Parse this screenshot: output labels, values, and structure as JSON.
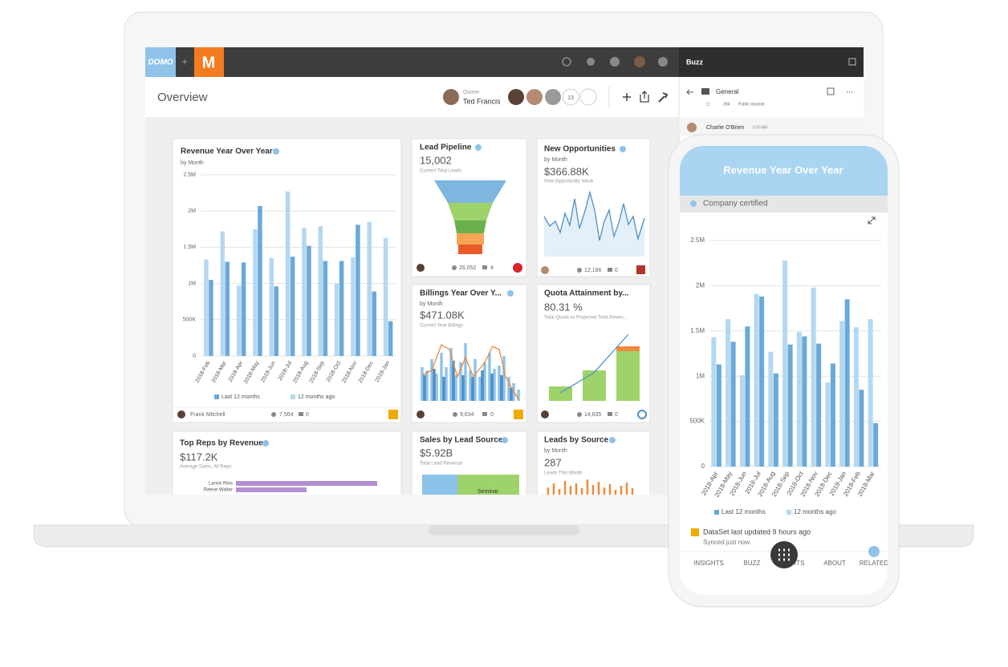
{
  "top_bar": {
    "logo": "DOMO",
    "plus": "+",
    "app_letter": "M",
    "buzz": "Buzz"
  },
  "header": {
    "title": "Overview",
    "owner_label": "Owner",
    "owner": "Ted Francis",
    "member_count": "13"
  },
  "buzz_panel": {
    "channel": "General",
    "members": "294",
    "channel_type": "Public channel",
    "message_author": "Charlie O'Brien",
    "message_time": "5:59 AM"
  },
  "cards": {
    "revenue": {
      "author": "Frank Mitchell",
      "views": "7,564",
      "comments": "0"
    },
    "lead_pipeline": {
      "title": "Lead Pipeline",
      "value": "15,002",
      "caption": "Current Total Leads",
      "views": "26,052",
      "comments": "4"
    },
    "new_opportunities": {
      "title": "New Opportunities",
      "subtitle": "by Month",
      "value": "$366.88K",
      "caption": "New Opportunity Value",
      "views": "12,166",
      "comments": "0"
    },
    "billings": {
      "title": "Billings Year Over Y...",
      "subtitle": "by Month",
      "value": "$471.08K",
      "caption": "Current Year Billings",
      "views": "9,634",
      "comments": "0"
    },
    "quota": {
      "title": "Quota Attainment by...",
      "value": "80.31 %",
      "caption": "Total Quota vs Projected Total Reven...",
      "views": "14,835",
      "comments": "0"
    },
    "top_reps": {
      "title": "Top Reps by Revenue",
      "value": "$117.2K",
      "caption": "Average Sales, All Reps",
      "reps": [
        "Lance Rios",
        "Reese Walter"
      ]
    },
    "sales_by_source": {
      "title": "Sales by Lead Source",
      "value": "$5.92B",
      "caption": "Total Lead Revenue",
      "segment": "Seminar"
    },
    "leads_by_source": {
      "title": "Leads by Source",
      "subtitle": "by Month",
      "value": "287",
      "caption": "Leads This Month"
    }
  },
  "phone": {
    "certified": "Company certified",
    "updated": "DataSet last updated 9 hours ago",
    "synced": "Synced just now",
    "nav": [
      "INSIGHTS",
      "BUZZ",
      "ALERTS",
      "ABOUT",
      "RELATED"
    ]
  },
  "chart_data": [
    {
      "type": "bar",
      "title": "Revenue Year Over Year",
      "subtitle": "by Month",
      "categories": [
        "2018-Feb",
        "2018-Mar",
        "2018-Apr",
        "2018-May",
        "2018-Jun",
        "2018-Jul",
        "2018-Aug",
        "2018-Sep",
        "2018-Oct",
        "2018-Nov",
        "2018-Dec",
        "2019-Jan"
      ],
      "series": [
        {
          "name": "Last 12 months",
          "color": "#6aa9d8",
          "values": [
            1050000,
            1300000,
            1290000,
            2070000,
            960000,
            1370000,
            1520000,
            1310000,
            1310000,
            1810000,
            890000,
            480000
          ]
        },
        {
          "name": "12 months ago",
          "color": "#b5d8f1",
          "values": [
            1330000,
            1720000,
            970000,
            1750000,
            1350000,
            2270000,
            1770000,
            1790000,
            1000000,
            1360000,
            1850000,
            1630000
          ]
        }
      ],
      "ylim": [
        0,
        2500000
      ],
      "yticks": [
        0,
        {
          "value": 500000,
          "label": "500K"
        },
        {
          "value": 1000000,
          "label": "1M"
        },
        {
          "value": 1500000,
          "label": "1.5M"
        },
        {
          "value": 2000000,
          "label": "2M"
        },
        {
          "value": 2500000,
          "label": "2.5M"
        }
      ],
      "grid": true,
      "legend": "bottom"
    },
    {
      "type": "bar",
      "title": "Revenue Year Over Year",
      "categories": [
        "2018-Apr",
        "2018-May",
        "2018-Jun",
        "2018-Jul",
        "2018-Aug",
        "2018-Sep",
        "2018-Oct",
        "2018-Nov",
        "2018-Dec",
        "2019-Jan",
        "2019-Feb",
        "2019-Mar"
      ],
      "series": [
        {
          "name": "Last 12 months",
          "color": "#6aa9d8",
          "values": [
            1130000,
            1380000,
            1550000,
            1880000,
            1030000,
            1350000,
            1440000,
            1360000,
            1140000,
            1850000,
            850000,
            480000
          ]
        },
        {
          "name": "12 months ago",
          "color": "#b5d8f1",
          "values": [
            1430000,
            1630000,
            1010000,
            1910000,
            1270000,
            2280000,
            1490000,
            1980000,
            930000,
            1610000,
            1540000,
            1630000
          ]
        }
      ],
      "ylim": [
        0,
        2500000
      ],
      "yticks": [
        0,
        {
          "value": 500000,
          "label": "500K"
        },
        {
          "value": 1000000,
          "label": "1M"
        },
        {
          "value": 1500000,
          "label": "1.5M"
        },
        {
          "value": 2000000,
          "label": "2M"
        },
        {
          "value": 2500000,
          "label": "2.5M"
        }
      ],
      "grid": true,
      "legend": "bottom"
    }
  ]
}
